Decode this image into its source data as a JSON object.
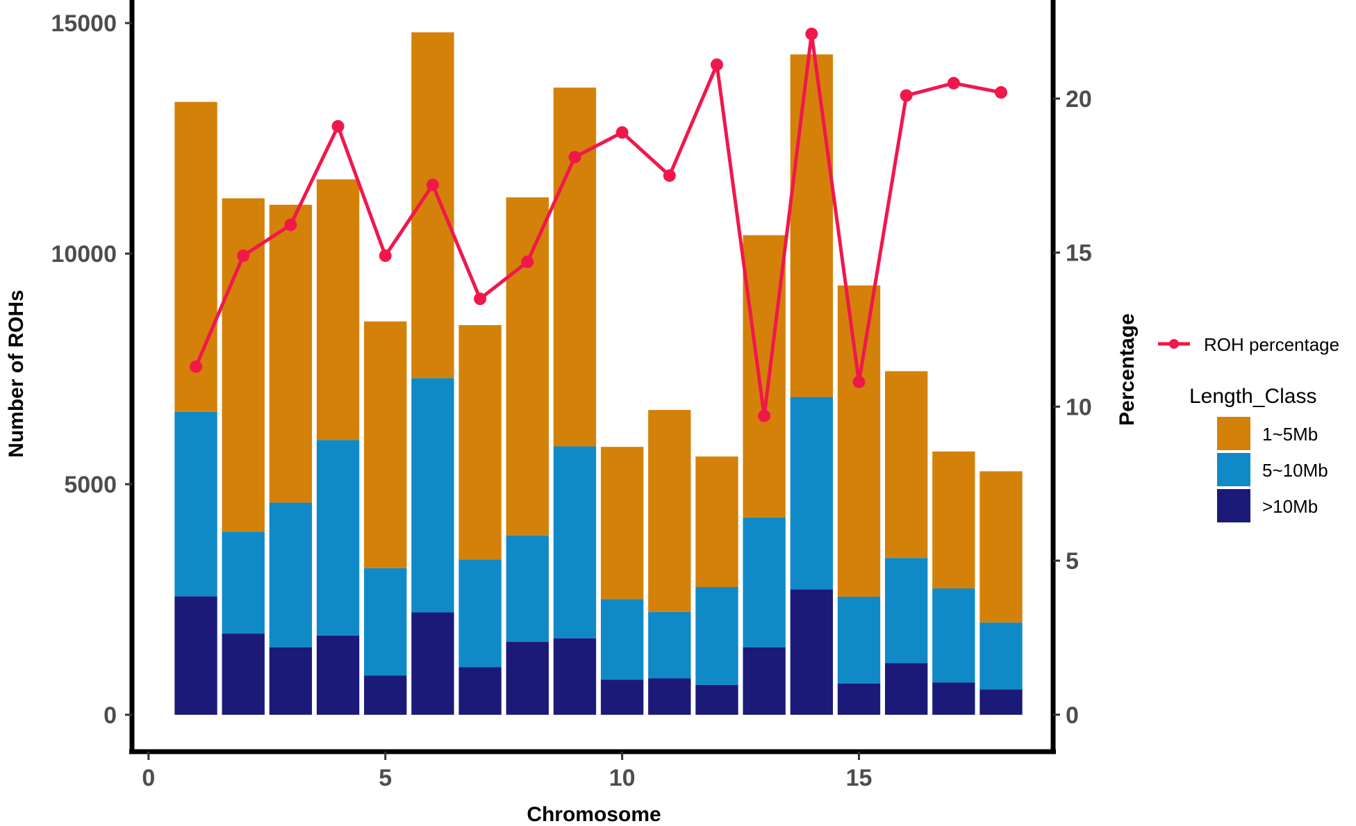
{
  "chart_data": {
    "type": "bar",
    "stacked": true,
    "xlabel": "Chromosome",
    "ylabel_left": "Number of ROHs",
    "ylabel_right": "Percentage",
    "x": [
      1,
      2,
      3,
      4,
      5,
      6,
      7,
      8,
      9,
      10,
      11,
      12,
      13,
      14,
      15,
      16,
      17,
      18
    ],
    "xlim": [
      -0.35,
      19.1
    ],
    "x_ticks": [
      "0",
      "5",
      "10",
      "15"
    ],
    "x_tick_values": [
      0,
      5,
      10,
      15
    ],
    "ylim_left": [
      -800,
      15500
    ],
    "y_ticks_left": [
      "0",
      "5000",
      "10000",
      "15000"
    ],
    "y_tick_values_left": [
      0,
      5000,
      10000,
      15000
    ],
    "ylim_right": [
      -1.2,
      23.2
    ],
    "y_ticks_right": [
      "0",
      "5",
      "10",
      "15",
      "20"
    ],
    "y_tick_values_right": [
      0,
      5,
      10,
      15,
      20
    ],
    "series": [
      {
        "name": ">10Mb",
        "color": "#1c1a78",
        "values": [
          2570,
          1760,
          1460,
          1720,
          850,
          2220,
          1030,
          1580,
          1660,
          760,
          790,
          650,
          1460,
          2720,
          680,
          1120,
          700,
          550
        ]
      },
      {
        "name": "5~10Mb",
        "color": "#0f8ac7",
        "values": [
          4000,
          2210,
          3140,
          4240,
          2330,
          5080,
          2340,
          2310,
          4160,
          1750,
          1440,
          2120,
          2820,
          4170,
          1880,
          2280,
          2040,
          1450
        ]
      },
      {
        "name": "1~5Mb",
        "color": "#d4810a",
        "values": [
          6720,
          7230,
          6460,
          5650,
          5350,
          7500,
          5080,
          7330,
          7780,
          3300,
          4380,
          2830,
          6120,
          7430,
          6750,
          4050,
          2970,
          3280
        ]
      }
    ],
    "line": {
      "name": "ROH percentage",
      "color": "#f0184b",
      "values": [
        11.3,
        14.9,
        15.9,
        19.1,
        14.9,
        17.2,
        13.5,
        14.7,
        18.1,
        18.9,
        17.5,
        21.1,
        9.7,
        22.1,
        10.8,
        20.1,
        20.5,
        20.2
      ]
    },
    "legend_title": "Length_Class",
    "legend_position": "right",
    "grid": false
  }
}
